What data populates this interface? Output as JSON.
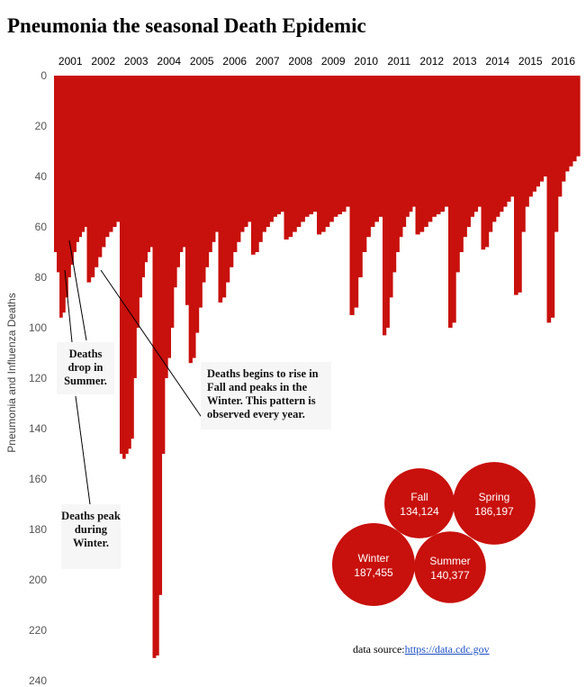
{
  "chart_data": {
    "type": "bar",
    "title": "Pneumonia the seasonal Death Epidemic",
    "ylabel": "Pneumonia and Influenza Deaths",
    "xlabel": "",
    "y_axis_reversed": true,
    "ylim": [
      0,
      240
    ],
    "yticks": [
      0,
      20,
      40,
      60,
      80,
      100,
      120,
      140,
      160,
      180,
      200,
      220,
      240
    ],
    "grid": false,
    "color": "#c8100c",
    "years": [
      {
        "label": "2001",
        "weekly_deaths": [
          70,
          78,
          96,
          94,
          88,
          80,
          75,
          70,
          66,
          64,
          62,
          60
        ]
      },
      {
        "label": "2002",
        "weekly_deaths": [
          82,
          80,
          76,
          72,
          68,
          64,
          62,
          60,
          58
        ]
      },
      {
        "label": "2003",
        "weekly_deaths": [
          150,
          152,
          150,
          148,
          144,
          120,
          100,
          88,
          80,
          74,
          70,
          68
        ]
      },
      {
        "label": "2004",
        "weekly_deaths": [
          231,
          230,
          206,
          150,
          120,
          112,
          100,
          84,
          76,
          70,
          68
        ]
      },
      {
        "label": "2005",
        "weekly_deaths": [
          91,
          114,
          112,
          102,
          92,
          82,
          76,
          70,
          66,
          62
        ]
      },
      {
        "label": "2006",
        "weekly_deaths": [
          90,
          88,
          82,
          76,
          70,
          66,
          62,
          60,
          58
        ]
      },
      {
        "label": "2007",
        "weekly_deaths": [
          71,
          70,
          66,
          62,
          60,
          58,
          56,
          55,
          54
        ]
      },
      {
        "label": "2008",
        "weekly_deaths": [
          65,
          64,
          62,
          60,
          58,
          56,
          55,
          54
        ]
      },
      {
        "label": "2009",
        "weekly_deaths": [
          63,
          62,
          60,
          58,
          56,
          55,
          54,
          52
        ]
      },
      {
        "label": "2010",
        "weekly_deaths": [
          95,
          92,
          80,
          70,
          64,
          60,
          58,
          56
        ]
      },
      {
        "label": "2011",
        "weekly_deaths": [
          103,
          100,
          88,
          78,
          70,
          64,
          60,
          56,
          54,
          52
        ]
      },
      {
        "label": "2012",
        "weekly_deaths": [
          63,
          62,
          60,
          58,
          56,
          55,
          54,
          52
        ]
      },
      {
        "label": "2013",
        "weekly_deaths": [
          100,
          98,
          78,
          70,
          64,
          60,
          56,
          54,
          52
        ]
      },
      {
        "label": "2014",
        "weekly_deaths": [
          69,
          68,
          62,
          58,
          56,
          54,
          52,
          50,
          48
        ]
      },
      {
        "label": "2015",
        "weekly_deaths": [
          87,
          86,
          62,
          52,
          48,
          46,
          44,
          42,
          40
        ]
      },
      {
        "label": "2016",
        "weekly_deaths": [
          98,
          96,
          62,
          48,
          42,
          38,
          36,
          34,
          32
        ]
      }
    ],
    "seasons": [
      {
        "name": "Fall",
        "value": 134124,
        "label": "134,124"
      },
      {
        "name": "Spring",
        "value": 186197,
        "label": "186,197"
      },
      {
        "name": "Winter",
        "value": 187455,
        "label": "187,455"
      },
      {
        "name": "Summer",
        "value": 140377,
        "label": "140,377"
      }
    ]
  },
  "annotations": {
    "drop_summer": "Deaths drop in Summer.",
    "peak_winter": "Deaths peak during Winter.",
    "rise_fall": "Deaths begins to rise in Fall and peaks in the Winter. This pattern is observed every year."
  },
  "source": {
    "prefix": "data source:",
    "link_text": "https://data.cdc.gov"
  }
}
